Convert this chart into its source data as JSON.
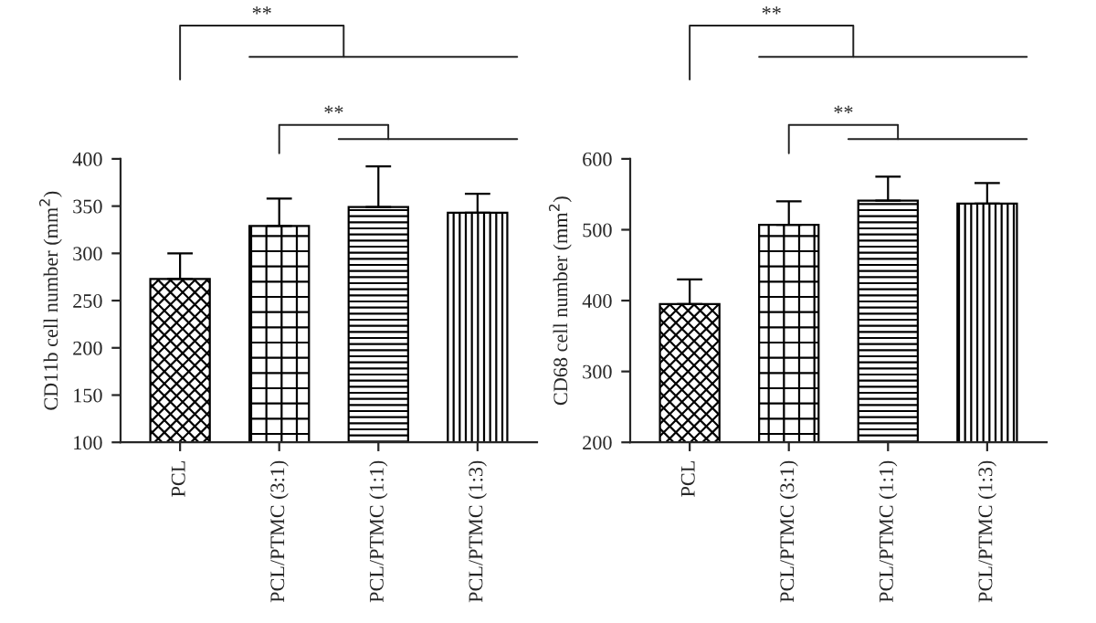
{
  "chart_data": [
    {
      "type": "bar",
      "ylabel": "CD11b cell number (mm$^{2}$)",
      "categories": [
        "PCL",
        "PCL/PTMC (3:1)",
        "PCL/PTMC (1:1)",
        "PCL/PTMC (1:3)"
      ],
      "values": [
        273,
        329,
        349,
        343
      ],
      "errors": [
        27,
        29,
        43,
        20
      ],
      "color": "#000000",
      "ylim": [
        100,
        400
      ],
      "yticks": [
        100,
        150,
        200,
        250,
        300,
        350,
        400
      ],
      "grid": false,
      "annotations": [
        "**",
        "**"
      ]
    },
    {
      "type": "bar",
      "ylabel": "CD68 cell number (mm$^{2}$)",
      "categories": [
        "PCL",
        "PCL/PTMC (3:1)",
        "PCL/PTMC (1:1)",
        "PCL/PTMC (1:3)"
      ],
      "values": [
        395,
        507,
        541,
        537
      ],
      "errors": [
        35,
        33,
        34,
        29
      ],
      "color": "#000000",
      "ylim": [
        200,
        600
      ],
      "yticks": [
        200,
        300,
        400,
        500,
        600
      ],
      "grid": false,
      "annotations": [
        "**",
        "**"
      ]
    }
  ]
}
